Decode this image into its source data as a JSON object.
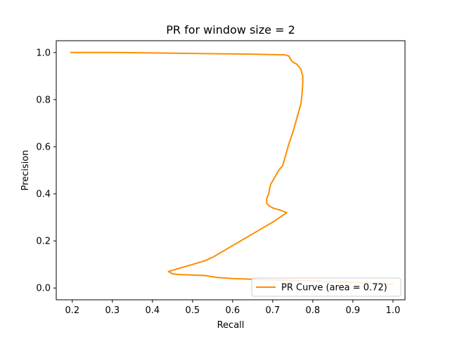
{
  "chart_data": {
    "type": "line",
    "title": "PR for window size = 2",
    "xlabel": "Recall",
    "ylabel": "Precision",
    "xlim": [
      0.16,
      1.03
    ],
    "ylim": [
      -0.05,
      1.05
    ],
    "xticks": [
      0.2,
      0.3,
      0.4,
      0.5,
      0.6,
      0.7,
      0.8,
      0.9,
      1.0
    ],
    "yticks": [
      0.0,
      0.2,
      0.4,
      0.6,
      0.8,
      1.0
    ],
    "xtick_labels": [
      "0.2",
      "0.3",
      "0.4",
      "0.5",
      "0.6",
      "0.7",
      "0.8",
      "0.9",
      "1.0"
    ],
    "ytick_labels": [
      "0.0",
      "0.2",
      "0.4",
      "0.6",
      "0.8",
      "1.0"
    ],
    "grid": false,
    "legend_position": "lower-right",
    "series": [
      {
        "name": "PR Curve (area = 0.72)",
        "color": "#ff8c00",
        "x": [
          0.195,
          0.3,
          0.4,
          0.5,
          0.55,
          0.65,
          0.73,
          0.74,
          0.745,
          0.75,
          0.76,
          0.765,
          0.77,
          0.775,
          0.775,
          0.773,
          0.77,
          0.76,
          0.75,
          0.74,
          0.735,
          0.73,
          0.725,
          0.715,
          0.705,
          0.695,
          0.692,
          0.69,
          0.685,
          0.685,
          0.69,
          0.695,
          0.7,
          0.71,
          0.72,
          0.735,
          0.7,
          0.66,
          0.62,
          0.6,
          0.57,
          0.55,
          0.53,
          0.5,
          0.47,
          0.45,
          0.44,
          0.45,
          0.47,
          0.5,
          0.53,
          0.56,
          0.6,
          0.65,
          0.7,
          0.75,
          0.8,
          0.85,
          0.9,
          0.95,
          1.0
        ],
        "y": [
          1.0,
          1.0,
          0.998,
          0.996,
          0.995,
          0.993,
          0.99,
          0.985,
          0.97,
          0.96,
          0.95,
          0.94,
          0.93,
          0.9,
          0.87,
          0.82,
          0.78,
          0.72,
          0.66,
          0.61,
          0.58,
          0.55,
          0.52,
          0.5,
          0.47,
          0.44,
          0.42,
          0.4,
          0.38,
          0.36,
          0.35,
          0.345,
          0.34,
          0.335,
          0.33,
          0.32,
          0.28,
          0.24,
          0.2,
          0.18,
          0.15,
          0.13,
          0.115,
          0.1,
          0.085,
          0.075,
          0.07,
          0.06,
          0.057,
          0.055,
          0.053,
          0.045,
          0.04,
          0.037,
          0.035,
          0.032,
          0.03,
          0.027,
          0.024,
          0.02,
          0.015
        ]
      }
    ]
  }
}
